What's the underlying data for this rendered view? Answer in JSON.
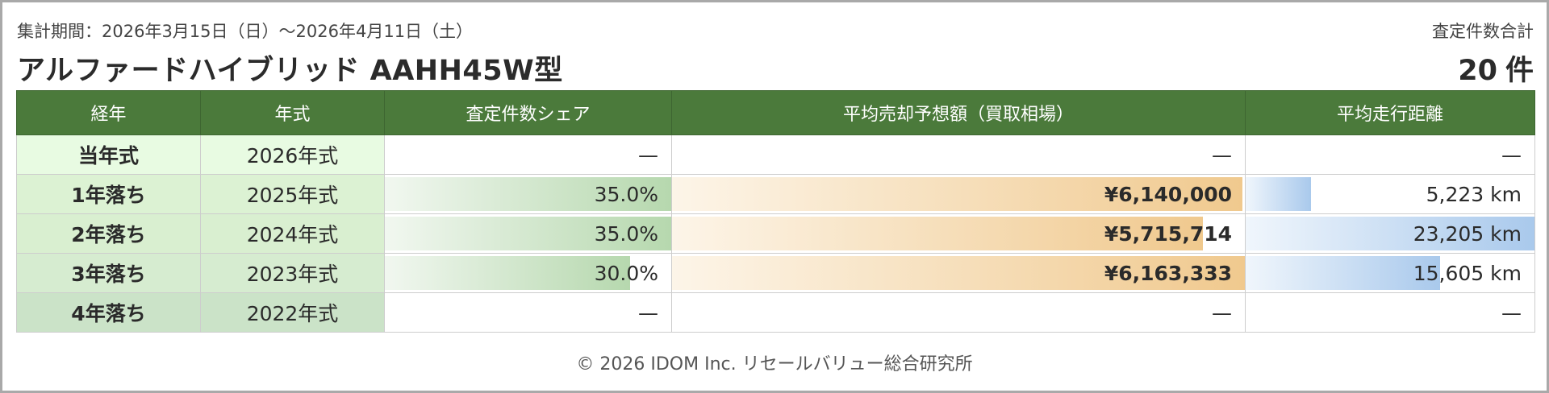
{
  "header": {
    "period": "集計期間：2026年3月15日（日）〜2026年4月11日（土）",
    "model": "アルファードハイブリッド AAHH45W型",
    "total_label": "査定件数合計",
    "total_value": "20",
    "total_unit": "件"
  },
  "table": {
    "columns": [
      "経年",
      "年式",
      "査定件数シェア",
      "平均売却予想額（買取相場）",
      "平均走行距離"
    ],
    "rows": [
      {
        "age": "当年式",
        "year": "2026年式",
        "share": "—",
        "share_pct": null,
        "price": "—",
        "price_ratio": null,
        "mileage": "—",
        "mileage_ratio": null,
        "age_bg": "#e8fbe2"
      },
      {
        "age": "1年落ち",
        "year": "2025年式",
        "share": "35.0%",
        "share_pct": 100,
        "price": "¥6,140,000",
        "price_ratio": 0.996,
        "mileage": "5,223 km",
        "mileage_ratio": 0.225,
        "age_bg": "#dcf2d3"
      },
      {
        "age": "2年落ち",
        "year": "2024年式",
        "share": "35.0%",
        "share_pct": 100,
        "price": "¥5,715,714",
        "price_ratio": 0.927,
        "mileage": "23,205 km",
        "mileage_ratio": 1.0,
        "age_bg": "#d9efd0"
      },
      {
        "age": "3年落ち",
        "year": "2023年式",
        "share": "30.0%",
        "share_pct": 85.7,
        "price": "¥6,163,333",
        "price_ratio": 1.0,
        "mileage": "15,605 km",
        "mileage_ratio": 0.672,
        "age_bg": "#d6ecd0"
      },
      {
        "age": "4年落ち",
        "year": "2022年式",
        "share": "—",
        "share_pct": null,
        "price": "—",
        "price_ratio": null,
        "mileage": "—",
        "mileage_ratio": null,
        "age_bg": "#cbe3c8"
      }
    ]
  },
  "footer": {
    "copyright": "© 2026 IDOM Inc. リセールバリュー総合研究所"
  },
  "colors": {
    "header_bg": "#4b7a3b",
    "share_bar": "#b6d8ae",
    "price_bar": "#f0c98e",
    "mileage_bar": "#a9c9ec"
  }
}
